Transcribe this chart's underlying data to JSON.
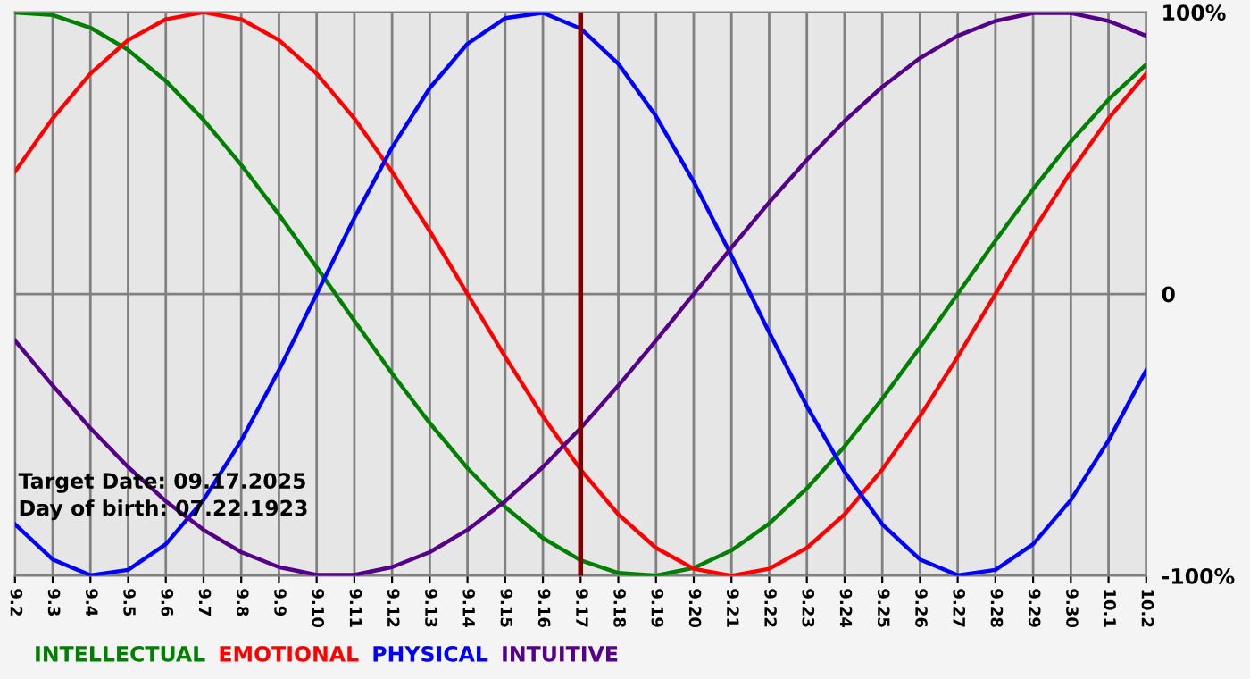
{
  "chart_data": {
    "type": "line",
    "categories": [
      "9.2",
      "9.3",
      "9.4",
      "9.5",
      "9.6",
      "9.7",
      "9.8",
      "9.9",
      "9.10",
      "9.11",
      "9.12",
      "9.13",
      "9.14",
      "9.15",
      "9.16",
      "9.17",
      "9.18",
      "9.19",
      "9.20",
      "9.21",
      "9.22",
      "9.23",
      "9.24",
      "9.25",
      "9.26",
      "9.27",
      "9.28",
      "9.29",
      "9.30",
      "10.1",
      "10.2"
    ],
    "series": [
      {
        "name": "INTELLECTUAL",
        "color": "#008000",
        "values": [
          99.9,
          99.0,
          94.5,
          86.6,
          75.6,
          61.8,
          45.8,
          28.2,
          9.5,
          -9.5,
          -28.2,
          -45.8,
          -61.8,
          -75.6,
          -86.6,
          -94.5,
          -99.0,
          -99.9,
          -97.2,
          -91.0,
          -81.5,
          -69.0,
          -54.1,
          -37.2,
          -18.9,
          0,
          18.9,
          37.2,
          54.1,
          69.0,
          81.5
        ]
      },
      {
        "name": "EMOTIONAL",
        "color": "#ff0000",
        "values": [
          43.4,
          62.3,
          78.2,
          90.1,
          97.5,
          100,
          97.5,
          90.1,
          78.2,
          62.3,
          43.4,
          22.3,
          0,
          -22.3,
          -43.4,
          -62.3,
          -78.2,
          -90.1,
          -97.5,
          -100,
          -97.5,
          -90.1,
          -78.2,
          -62.3,
          -43.4,
          -22.3,
          0,
          22.3,
          43.4,
          62.3,
          78.2
        ]
      },
      {
        "name": "PHYSICAL",
        "color": "#0000ff",
        "values": [
          -81.7,
          -94.2,
          -99.8,
          -97.9,
          -88.8,
          -73.1,
          -52.0,
          -27.0,
          0,
          27.0,
          52.0,
          73.1,
          88.8,
          97.9,
          99.8,
          94.2,
          81.7,
          63.1,
          39.8,
          13.6,
          -13.6,
          -39.8,
          -63.1,
          -81.7,
          -94.2,
          -99.8,
          -97.9,
          -88.8,
          -73.1,
          -52.0,
          -27.0
        ]
      },
      {
        "name": "INTUITIVE",
        "color": "#550088",
        "values": [
          -16.5,
          -32.5,
          -47.6,
          -61.4,
          -73.5,
          -83.7,
          -91.6,
          -96.9,
          -99.7,
          -99.7,
          -96.9,
          -91.6,
          -83.7,
          -73.5,
          -61.4,
          -47.6,
          -32.5,
          -16.5,
          0,
          16.5,
          32.5,
          47.6,
          61.4,
          73.5,
          83.7,
          91.6,
          96.9,
          99.7,
          99.7,
          96.9,
          91.6
        ]
      }
    ],
    "ylim": [
      -100,
      100
    ],
    "yticks": [
      {
        "value": 100,
        "label": "100%"
      },
      0,
      {
        "value": -100,
        "label": "-100%"
      }
    ],
    "grid": true,
    "legend": "bottom",
    "ref_lines": [
      {
        "axis": "x",
        "value": "9.17",
        "color": "#800000"
      }
    ],
    "annotations": [
      "Target Date: 09.17.2025",
      "Day of birth: 07.22.1923"
    ]
  }
}
